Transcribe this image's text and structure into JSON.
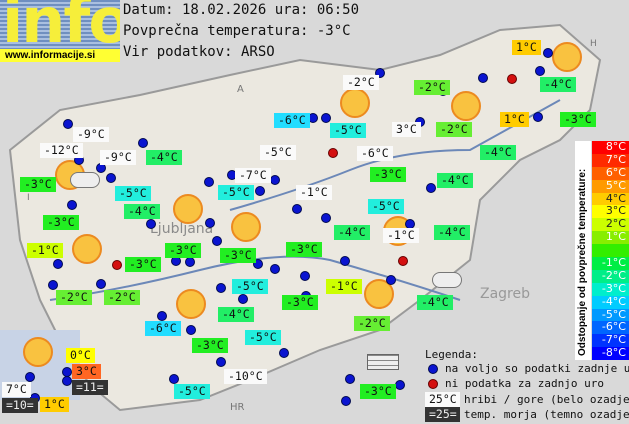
{
  "logo": {
    "text": "info",
    "url": "www.informacije.si"
  },
  "header": {
    "date_line": "Datum: 18.02.2026 ura: 06:50",
    "avg_line": "Povprečna temperatura: -3°C",
    "source_line": "Vir podatkov: ARSO"
  },
  "map_labels": {
    "ljubljana": "Ljubljana",
    "zagreb": "Zagreb",
    "hr": "HR",
    "a": "A",
    "h": "H",
    "i": "I"
  },
  "stations": [
    {
      "t": "1°C",
      "k": "c",
      "c": "#ffcc00"
    },
    {
      "t": "-2°C",
      "k": "w"
    },
    {
      "t": "-2°C",
      "k": "c",
      "c": "#66ee33"
    },
    {
      "t": "-4°C",
      "k": "c",
      "c": "#22ee66"
    },
    {
      "t": "1°C",
      "k": "c",
      "c": "#ffcc00"
    },
    {
      "t": "-3°C",
      "k": "c",
      "c": "#22ee22"
    },
    {
      "t": "-6°C",
      "k": "c",
      "c": "#22ddff"
    },
    {
      "t": "-5°C",
      "k": "c",
      "c": "#22eedd"
    },
    {
      "t": "3°C",
      "k": "w"
    },
    {
      "t": "-2°C",
      "k": "c",
      "c": "#66ee33"
    },
    {
      "t": "-9°C",
      "k": "w"
    },
    {
      "t": "-12°C",
      "k": "w"
    },
    {
      "t": "-9°C",
      "k": "w"
    },
    {
      "t": "-4°C",
      "k": "c",
      "c": "#22ee66"
    },
    {
      "t": "-5°C",
      "k": "w"
    },
    {
      "t": "-6°C",
      "k": "w"
    },
    {
      "t": "-4°C",
      "k": "c",
      "c": "#22ee66"
    },
    {
      "t": "-3°C",
      "k": "c",
      "c": "#22ee22"
    },
    {
      "t": "-3°C",
      "k": "c",
      "c": "#22ee22"
    },
    {
      "t": "-7°C",
      "k": "w"
    },
    {
      "t": "-4°C",
      "k": "c",
      "c": "#22ee66"
    },
    {
      "t": "-5°C",
      "k": "c",
      "c": "#22eedd"
    },
    {
      "t": "-5°C",
      "k": "c",
      "c": "#22eedd"
    },
    {
      "t": "-1°C",
      "k": "w"
    },
    {
      "t": "-5°C",
      "k": "c",
      "c": "#22eedd"
    },
    {
      "t": "-4°C",
      "k": "c",
      "c": "#22ee66"
    },
    {
      "t": "-3°C",
      "k": "c",
      "c": "#22ee22"
    },
    {
      "t": "-4°C",
      "k": "c",
      "c": "#22ee66"
    },
    {
      "t": "-1°C",
      "k": "w"
    },
    {
      "t": "-4°C",
      "k": "c",
      "c": "#22ee66"
    },
    {
      "t": "-1°C",
      "k": "c",
      "c": "#ccff00"
    },
    {
      "t": "-3°C",
      "k": "c",
      "c": "#22ee22"
    },
    {
      "t": "-3°C",
      "k": "c",
      "c": "#22ee22"
    },
    {
      "t": "-3°C",
      "k": "c",
      "c": "#22ee22"
    },
    {
      "t": "-3°C",
      "k": "c",
      "c": "#22ee22"
    },
    {
      "t": "-5°C",
      "k": "c",
      "c": "#22eedd"
    },
    {
      "t": "-1°C",
      "k": "c",
      "c": "#ccff00"
    },
    {
      "t": "-3°C",
      "k": "c",
      "c": "#22ee22"
    },
    {
      "t": "-4°C",
      "k": "c",
      "c": "#22ee66"
    },
    {
      "t": "-2°C",
      "k": "c",
      "c": "#66ee33"
    },
    {
      "t": "-2°C",
      "k": "c",
      "c": "#66ee33"
    },
    {
      "t": "-4°C",
      "k": "c",
      "c": "#22ee66"
    },
    {
      "t": "-2°C",
      "k": "c",
      "c": "#66ee33"
    },
    {
      "t": "-6°C",
      "k": "c",
      "c": "#22ddff"
    },
    {
      "t": "-3°C",
      "k": "c",
      "c": "#22ee22"
    },
    {
      "t": "-5°C",
      "k": "c",
      "c": "#22eedd"
    },
    {
      "t": "0°C",
      "k": "c",
      "c": "#ffff00"
    },
    {
      "t": "3°C",
      "k": "c",
      "c": "#ff6622"
    },
    {
      "t": "-10°C",
      "k": "w"
    },
    {
      "t": "7°C",
      "k": "w"
    },
    {
      "t": "=11=",
      "k": "d"
    },
    {
      "t": "-5°C",
      "k": "c",
      "c": "#22eedd"
    },
    {
      "t": "-3°C",
      "k": "c",
      "c": "#22ee22"
    },
    {
      "t": "=10=",
      "k": "d"
    },
    {
      "t": "1°C",
      "k": "c",
      "c": "#ffcc00"
    }
  ],
  "scale": {
    "title": "Odstopanje od povprečne temperature:",
    "steps": [
      {
        "l": "8°C",
        "c": "#ff0000"
      },
      {
        "l": "7°C",
        "c": "#ff2a00"
      },
      {
        "l": "6°C",
        "c": "#ff6000"
      },
      {
        "l": "5°C",
        "c": "#ff9a00"
      },
      {
        "l": "4°C",
        "c": "#ffcc00"
      },
      {
        "l": "3°C",
        "c": "#ffff00"
      },
      {
        "l": "2°C",
        "c": "#ccff00"
      },
      {
        "l": "1°C",
        "c": "#88ee00"
      },
      {
        "l": "",
        "c": "#33ee00"
      },
      {
        "l": "-1°C",
        "c": "#00ee44"
      },
      {
        "l": "-2°C",
        "c": "#00ee88"
      },
      {
        "l": "-3°C",
        "c": "#00eecc"
      },
      {
        "l": "-4°C",
        "c": "#00ccff"
      },
      {
        "l": "-5°C",
        "c": "#0099ff"
      },
      {
        "l": "-6°C",
        "c": "#0066ff"
      },
      {
        "l": "-7°C",
        "c": "#0033ff"
      },
      {
        "l": "-8°C",
        "c": "#0000ff"
      }
    ]
  },
  "legend": {
    "title": "Legenda:",
    "blue": "na voljo so podatki zadnje ure",
    "red": "ni podatka za zadnjo uro",
    "mountain_sample": "25°C",
    "mountain": "hribi / gore (belo ozadje)",
    "sea_sample": "=25=",
    "sea": "temp. morja (temno ozadje)"
  }
}
